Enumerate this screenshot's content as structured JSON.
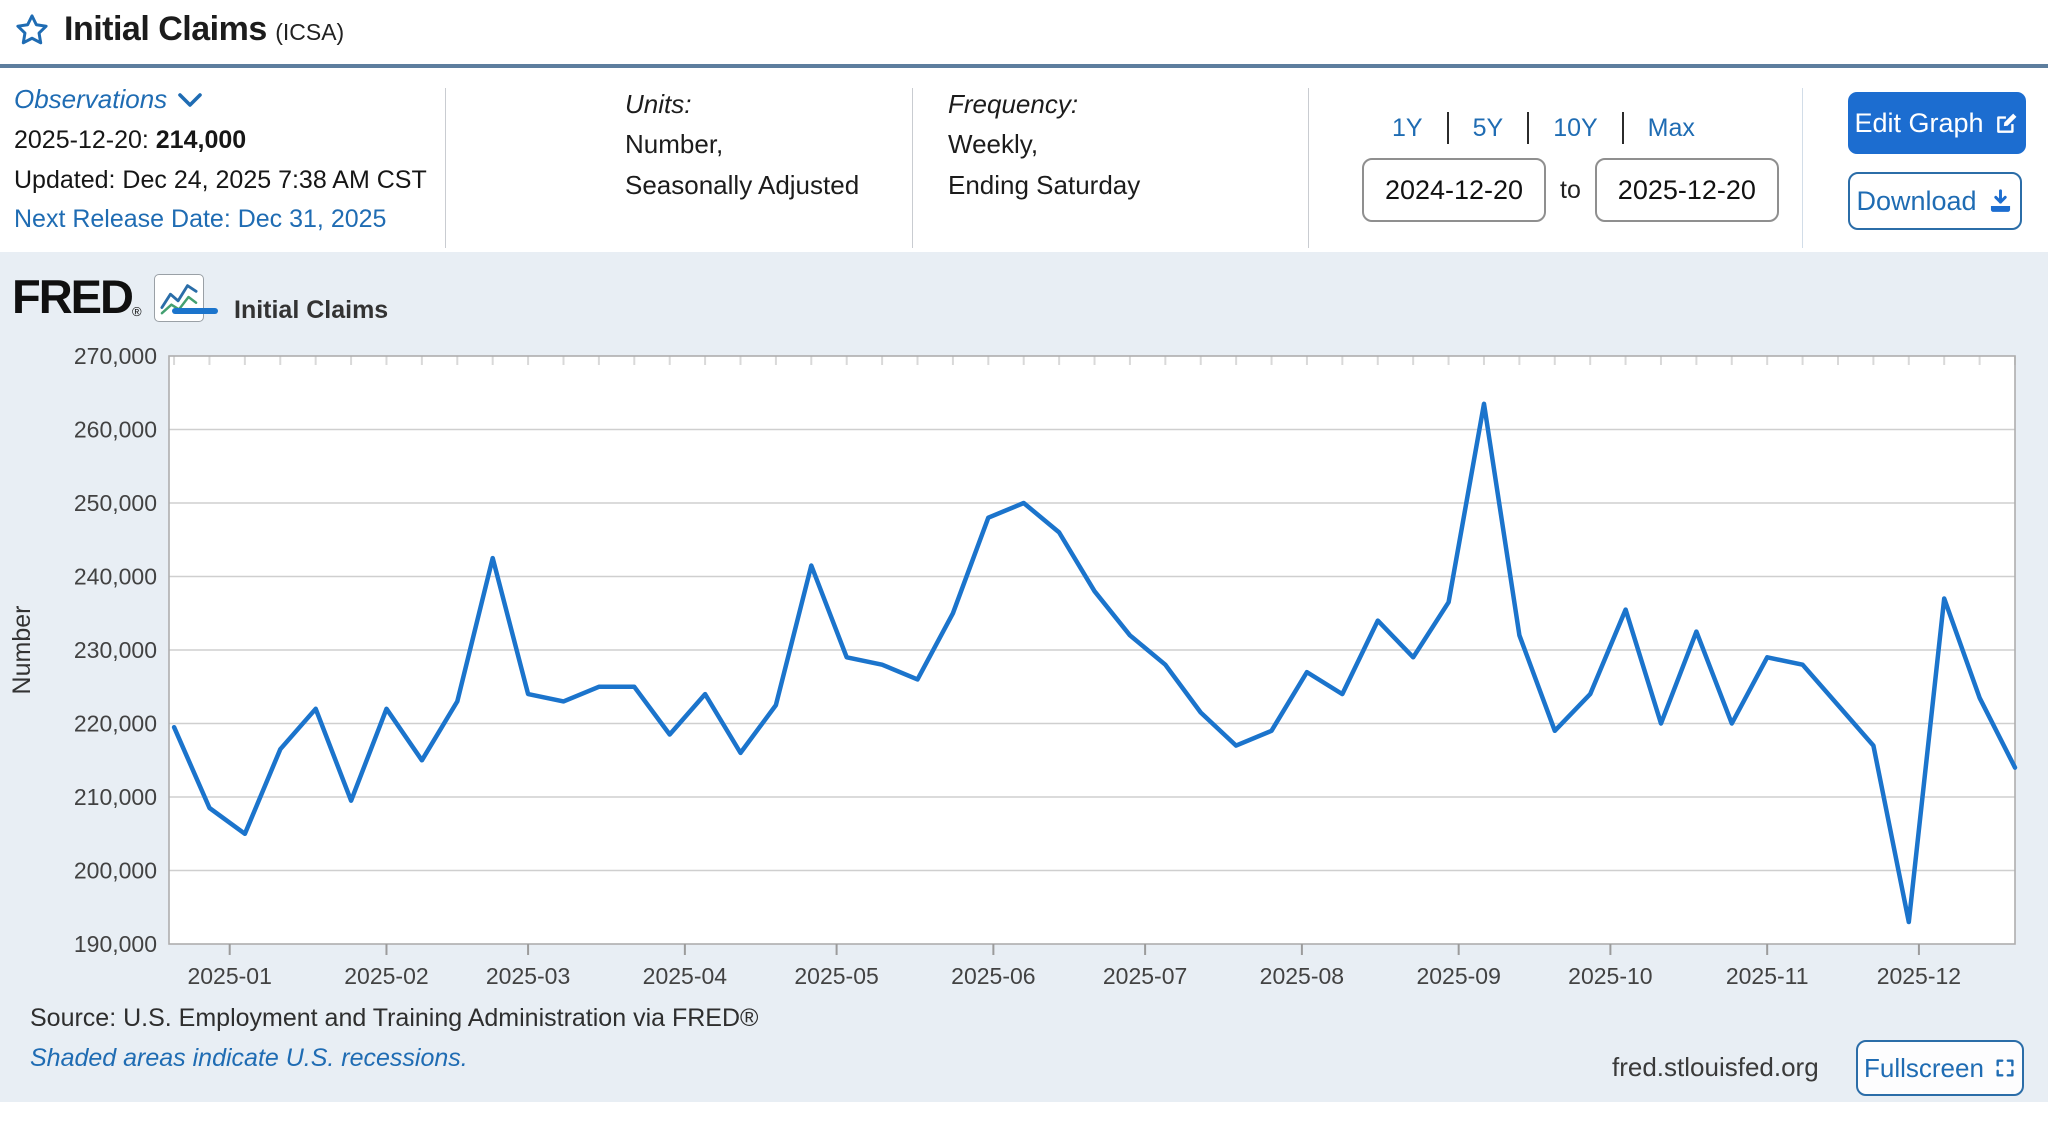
{
  "header": {
    "title": "Initial Claims",
    "ticker": "(ICSA)"
  },
  "meta": {
    "observations_label": "Observations",
    "latest_date_label": "2025-12-20:",
    "latest_value": "214,000",
    "updated": "Updated: Dec 24, 2025 7:38 AM CST",
    "next_release": "Next Release Date: Dec 31, 2025",
    "units_label": "Units:",
    "units_line1": "Number,",
    "units_line2": "Seasonally Adjusted",
    "frequency_label": "Frequency:",
    "frequency_line1": "Weekly,",
    "frequency_line2": "Ending Saturday",
    "ranges": [
      "1Y",
      "5Y",
      "10Y",
      "Max"
    ],
    "date_from": "2024-12-20",
    "to_label": "to",
    "date_to": "2025-12-20",
    "edit_graph_label": "Edit Graph",
    "download_label": "Download"
  },
  "chart_header": {
    "brand": "FRED",
    "brand_reg": "®",
    "legend": "Initial Claims"
  },
  "footer": {
    "source": "Source: U.S. Employment and Training Administration via FRED®",
    "shaded_note": "Shaded areas indicate U.S. recessions.",
    "domain": "fred.stlouisfed.org",
    "fullscreen_label": "Fullscreen"
  },
  "colors": {
    "link_blue": "#1f6cb3",
    "button_blue": "#1c6dd0",
    "line_blue": "#1b74cc",
    "header_rule": "#5d7e9e",
    "chart_bg": "#e8eef4",
    "plot_bg": "#ffffff",
    "grid": "#cfcfcf",
    "plot_border": "#aeaeae",
    "tick_text": "#424242"
  },
  "chart_data": {
    "type": "line",
    "title": "Initial Claims (ICSA)",
    "series_name": "Initial Claims",
    "ylabel": "Number",
    "ylim": [
      190000,
      270000
    ],
    "y_ticks": [
      190000,
      200000,
      210000,
      220000,
      230000,
      240000,
      250000,
      260000,
      270000
    ],
    "x_start": "2024-12-20",
    "x_end": "2025-12-20",
    "x_total_days": 365,
    "x_tick_labels": [
      "2025-01",
      "2025-02",
      "2025-03",
      "2025-04",
      "2025-05",
      "2025-06",
      "2025-07",
      "2025-08",
      "2025-09",
      "2025-10",
      "2025-11",
      "2025-12"
    ],
    "grid": true,
    "legend_position": "top-left",
    "frequency": "weekly",
    "dates": [
      "2024-12-21",
      "2024-12-28",
      "2025-01-04",
      "2025-01-11",
      "2025-01-18",
      "2025-01-25",
      "2025-02-01",
      "2025-02-08",
      "2025-02-15",
      "2025-02-22",
      "2025-03-01",
      "2025-03-08",
      "2025-03-15",
      "2025-03-22",
      "2025-03-29",
      "2025-04-05",
      "2025-04-12",
      "2025-04-19",
      "2025-04-26",
      "2025-05-03",
      "2025-05-10",
      "2025-05-17",
      "2025-05-24",
      "2025-05-31",
      "2025-06-07",
      "2025-06-14",
      "2025-06-21",
      "2025-06-28",
      "2025-07-05",
      "2025-07-12",
      "2025-07-19",
      "2025-07-26",
      "2025-08-02",
      "2025-08-09",
      "2025-08-16",
      "2025-08-23",
      "2025-08-30",
      "2025-09-06",
      "2025-09-13",
      "2025-09-20",
      "2025-09-27",
      "2025-10-04",
      "2025-10-11",
      "2025-10-18",
      "2025-10-25",
      "2025-11-01",
      "2025-11-08",
      "2025-11-15",
      "2025-11-22",
      "2025-11-29",
      "2025-12-06",
      "2025-12-13",
      "2025-12-20"
    ],
    "values": [
      219500,
      208500,
      205000,
      216500,
      222000,
      209500,
      222000,
      215000,
      223000,
      242500,
      224000,
      223000,
      225000,
      225000,
      218500,
      224000,
      216000,
      222500,
      241500,
      229000,
      228000,
      226000,
      235000,
      248000,
      250000,
      246000,
      238000,
      232000,
      228000,
      221500,
      217000,
      219000,
      227000,
      224000,
      234000,
      229000,
      236500,
      263500,
      232000,
      219000,
      224000,
      235500,
      220000,
      232500,
      220000,
      229000,
      228000,
      222500,
      217000,
      193000,
      237000,
      223500,
      214000
    ]
  }
}
